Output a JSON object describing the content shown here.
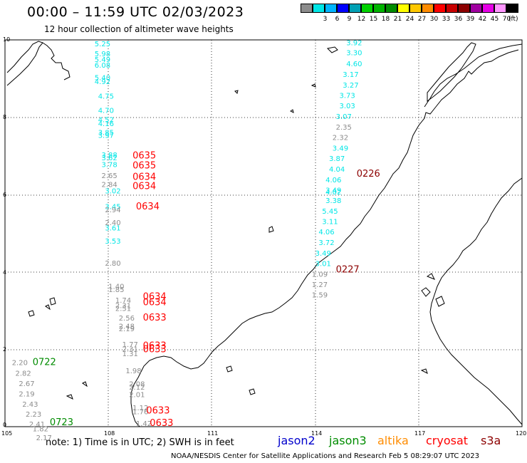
{
  "title": "00:00 – 11:59 UTC 02/03/2023",
  "subtitle": "12 hour collection of altimeter wave heights",
  "legend": {
    "unit": "(ft)",
    "bins": [
      {
        "label": "",
        "color": "#8c8c8c"
      },
      {
        "label": "3",
        "color": "#00e6e6"
      },
      {
        "label": "6",
        "color": "#00b4ff"
      },
      {
        "label": "9",
        "color": "#0000ff"
      },
      {
        "label": "12",
        "color": "#00a0b4"
      },
      {
        "label": "15",
        "color": "#00d200"
      },
      {
        "label": "18",
        "color": "#00b400"
      },
      {
        "label": "21",
        "color": "#008c00"
      },
      {
        "label": "24",
        "color": "#ffff00"
      },
      {
        "label": "27",
        "color": "#ffc800"
      },
      {
        "label": "30",
        "color": "#ff8c00"
      },
      {
        "label": "33",
        "color": "#ff0000"
      },
      {
        "label": "36",
        "color": "#c80000"
      },
      {
        "label": "39",
        "color": "#8c0000"
      },
      {
        "label": "42",
        "color": "#a000a0"
      },
      {
        "label": "45",
        "color": "#e600e6"
      },
      {
        "label": "70",
        "color": "#ff96ff"
      },
      {
        "label": "",
        "color": "#000000"
      }
    ]
  },
  "axes": {
    "x_ticks": [
      "105",
      "108",
      "111",
      "114",
      "117",
      "120"
    ],
    "y_ticks": [
      "0",
      "2",
      "4",
      "6",
      "8",
      "10"
    ]
  },
  "note": "note:  1) Time is in UTC;  2) SWH is in feet",
  "satellites": [
    {
      "name": "jason2",
      "color": "#0000cc"
    },
    {
      "name": "jason3",
      "color": "#008c00"
    },
    {
      "name": "altika",
      "color": "#ff8c00"
    },
    {
      "name": "cryosat",
      "color": "#ff0000"
    },
    {
      "name": "s3a",
      "color": "#8c0000"
    }
  ],
  "credit": "NOAA/NESDIS Center for Satellite Applications and Research    Feb  5 08:29:07 UTC 2023",
  "track_labels": [
    {
      "text": "0635",
      "lon": 108.7,
      "lat": 6.93,
      "color": "#ff0000"
    },
    {
      "text": "0635",
      "lon": 108.7,
      "lat": 6.68,
      "color": "#ff0000"
    },
    {
      "text": "0634",
      "lon": 108.7,
      "lat": 6.38,
      "color": "#ff0000"
    },
    {
      "text": "0634",
      "lon": 108.7,
      "lat": 6.14,
      "color": "#ff0000"
    },
    {
      "text": "0634",
      "lon": 108.8,
      "lat": 5.62,
      "color": "#ff0000"
    },
    {
      "text": "0634",
      "lon": 109.0,
      "lat": 3.29,
      "color": "#ff0000"
    },
    {
      "text": "0634",
      "lon": 109.0,
      "lat": 3.14,
      "color": "#ff0000"
    },
    {
      "text": "0633",
      "lon": 109.0,
      "lat": 2.74,
      "color": "#ff0000"
    },
    {
      "text": "0633",
      "lon": 109.0,
      "lat": 2.02,
      "color": "#ff0000"
    },
    {
      "text": "0633",
      "lon": 109.0,
      "lat": 1.92,
      "color": "#ff0000"
    },
    {
      "text": "0633",
      "lon": 109.1,
      "lat": 0.34,
      "color": "#ff0000"
    },
    {
      "text": "0633",
      "lon": 109.2,
      "lat": 0.02,
      "color": "#ff0000"
    },
    {
      "text": "0226",
      "lon": 115.2,
      "lat": 6.46,
      "color": "#8c0000"
    },
    {
      "text": "0227",
      "lon": 114.6,
      "lat": 3.99,
      "color": "#8c0000"
    },
    {
      "text": "0722",
      "lon": 105.8,
      "lat": 1.59,
      "color": "#008c00"
    },
    {
      "text": "0723",
      "lon": 106.3,
      "lat": 0.04,
      "color": "#008c00"
    }
  ],
  "swh_points": [
    {
      "text": "5.25",
      "lon": 107.6,
      "lat": 9.83,
      "color": "#00e6e6"
    },
    {
      "text": "5.98",
      "lon": 107.6,
      "lat": 9.58,
      "color": "#00e6e6"
    },
    {
      "text": "5.49",
      "lon": 107.6,
      "lat": 9.43,
      "color": "#00e6e6"
    },
    {
      "text": "6.08",
      "lon": 107.6,
      "lat": 9.28,
      "color": "#00e6e6"
    },
    {
      "text": "5.40",
      "lon": 107.6,
      "lat": 8.96,
      "color": "#00e6e6"
    },
    {
      "text": "4.92",
      "lon": 107.6,
      "lat": 8.86,
      "color": "#00e6e6"
    },
    {
      "text": "4.75",
      "lon": 107.7,
      "lat": 8.48,
      "color": "#00e6e6"
    },
    {
      "text": "4.70",
      "lon": 107.7,
      "lat": 8.11,
      "color": "#00e6e6"
    },
    {
      "text": "4.52",
      "lon": 107.7,
      "lat": 7.87,
      "color": "#00e6e6"
    },
    {
      "text": "4.16",
      "lon": 107.7,
      "lat": 7.77,
      "color": "#00e6e6"
    },
    {
      "text": "3.85",
      "lon": 107.7,
      "lat": 7.54,
      "color": "#00e6e6"
    },
    {
      "text": "3.97",
      "lon": 107.7,
      "lat": 7.47,
      "color": "#00e6e6"
    },
    {
      "text": "3.88",
      "lon": 107.8,
      "lat": 6.96,
      "color": "#00e6e6"
    },
    {
      "text": "3.62",
      "lon": 107.8,
      "lat": 6.89,
      "color": "#00e6e6"
    },
    {
      "text": "3.78",
      "lon": 107.8,
      "lat": 6.71,
      "color": "#00e6e6"
    },
    {
      "text": "2.65",
      "lon": 107.8,
      "lat": 6.43,
      "color": "#8c8c8c"
    },
    {
      "text": "2.84",
      "lon": 107.8,
      "lat": 6.2,
      "color": "#8c8c8c"
    },
    {
      "text": "3.02",
      "lon": 107.9,
      "lat": 6.03,
      "color": "#00e6e6"
    },
    {
      "text": "3.45",
      "lon": 107.9,
      "lat": 5.63,
      "color": "#00e6e6"
    },
    {
      "text": "2.94",
      "lon": 107.9,
      "lat": 5.54,
      "color": "#8c8c8c"
    },
    {
      "text": "2.40",
      "lon": 107.9,
      "lat": 5.21,
      "color": "#8c8c8c"
    },
    {
      "text": "3.61",
      "lon": 107.9,
      "lat": 5.07,
      "color": "#00e6e6"
    },
    {
      "text": "3.53",
      "lon": 107.9,
      "lat": 4.73,
      "color": "#00e6e6"
    },
    {
      "text": "2.80",
      "lon": 107.9,
      "lat": 4.16,
      "color": "#8c8c8c"
    },
    {
      "text": "1.40",
      "lon": 108.0,
      "lat": 3.56,
      "color": "#8c8c8c"
    },
    {
      "text": "1.85",
      "lon": 108.0,
      "lat": 3.48,
      "color": "#8c8c8c"
    },
    {
      "text": "1.74",
      "lon": 108.2,
      "lat": 3.2,
      "color": "#8c8c8c"
    },
    {
      "text": "2.31",
      "lon": 108.2,
      "lat": 3.07,
      "color": "#8c8c8c"
    },
    {
      "text": "2.51",
      "lon": 108.2,
      "lat": 2.99,
      "color": "#8c8c8c"
    },
    {
      "text": "2.56",
      "lon": 108.3,
      "lat": 2.74,
      "color": "#8c8c8c"
    },
    {
      "text": "2.48",
      "lon": 108.3,
      "lat": 2.53,
      "color": "#8c8c8c"
    },
    {
      "text": "2.19",
      "lon": 108.3,
      "lat": 2.47,
      "color": "#8c8c8c"
    },
    {
      "text": "1.77",
      "lon": 108.4,
      "lat": 2.06,
      "color": "#8c8c8c"
    },
    {
      "text": "2.31",
      "lon": 108.4,
      "lat": 1.94,
      "color": "#8c8c8c"
    },
    {
      "text": "1.31",
      "lon": 108.4,
      "lat": 1.82,
      "color": "#8c8c8c"
    },
    {
      "text": "1.98",
      "lon": 108.5,
      "lat": 1.38,
      "color": "#8c8c8c"
    },
    {
      "text": "2.08",
      "lon": 108.6,
      "lat": 1.04,
      "color": "#8c8c8c"
    },
    {
      "text": "2.12",
      "lon": 108.6,
      "lat": 0.96,
      "color": "#8c8c8c"
    },
    {
      "text": "2.01",
      "lon": 108.6,
      "lat": 0.76,
      "color": "#8c8c8c"
    },
    {
      "text": "1.12",
      "lon": 108.7,
      "lat": 0.42,
      "color": "#8c8c8c"
    },
    {
      "text": "1.76",
      "lon": 108.7,
      "lat": 0.32,
      "color": "#8c8c8c"
    },
    {
      "text": "1.42",
      "lon": 108.8,
      "lat": 0.02,
      "color": "#8c8c8c"
    },
    {
      "text": "3.92",
      "lon": 114.9,
      "lat": 9.86,
      "color": "#00e6e6"
    },
    {
      "text": "3.30",
      "lon": 114.9,
      "lat": 9.6,
      "color": "#00e6e6"
    },
    {
      "text": "4.60",
      "lon": 114.9,
      "lat": 9.32,
      "color": "#00e6e6"
    },
    {
      "text": "3.17",
      "lon": 114.8,
      "lat": 9.04,
      "color": "#00e6e6"
    },
    {
      "text": "3.27",
      "lon": 114.8,
      "lat": 8.77,
      "color": "#00e6e6"
    },
    {
      "text": "3.73",
      "lon": 114.7,
      "lat": 8.5,
      "color": "#00e6e6"
    },
    {
      "text": "3.03",
      "lon": 114.7,
      "lat": 8.23,
      "color": "#00e6e6"
    },
    {
      "text": "3.07",
      "lon": 114.6,
      "lat": 7.96,
      "color": "#00e6e6"
    },
    {
      "text": "2.35",
      "lon": 114.6,
      "lat": 7.68,
      "color": "#8c8c8c"
    },
    {
      "text": "2.32",
      "lon": 114.5,
      "lat": 7.41,
      "color": "#8c8c8c"
    },
    {
      "text": "3.49",
      "lon": 114.5,
      "lat": 7.14,
      "color": "#00e6e6"
    },
    {
      "text": "3.87",
      "lon": 114.4,
      "lat": 6.87,
      "color": "#00e6e6"
    },
    {
      "text": "4.04",
      "lon": 114.4,
      "lat": 6.59,
      "color": "#00e6e6"
    },
    {
      "text": "4.06",
      "lon": 114.3,
      "lat": 6.32,
      "color": "#00e6e6"
    },
    {
      "text": "3.49",
      "lon": 114.3,
      "lat": 6.05,
      "color": "#00e6e6"
    },
    {
      "text": "4.02",
      "lon": 114.3,
      "lat": 6.0,
      "color": "#00e6e6"
    },
    {
      "text": "3.38",
      "lon": 114.3,
      "lat": 5.78,
      "color": "#00e6e6"
    },
    {
      "text": "5.45",
      "lon": 114.2,
      "lat": 5.51,
      "color": "#00e6e6"
    },
    {
      "text": "3.11",
      "lon": 114.2,
      "lat": 5.24,
      "color": "#00e6e6"
    },
    {
      "text": "4.06",
      "lon": 114.1,
      "lat": 4.97,
      "color": "#00e6e6"
    },
    {
      "text": "3.72",
      "lon": 114.1,
      "lat": 4.7,
      "color": "#00e6e6"
    },
    {
      "text": "3.49",
      "lon": 114.0,
      "lat": 4.42,
      "color": "#00e6e6"
    },
    {
      "text": "3.01",
      "lon": 114.0,
      "lat": 4.15,
      "color": "#00e6e6"
    },
    {
      "text": "1.09",
      "lon": 113.9,
      "lat": 3.88,
      "color": "#8c8c8c"
    },
    {
      "text": "1.27",
      "lon": 113.9,
      "lat": 3.61,
      "color": "#8c8c8c"
    },
    {
      "text": "1.59",
      "lon": 113.9,
      "lat": 3.34,
      "color": "#8c8c8c"
    },
    {
      "text": "2.20",
      "lon": 105.2,
      "lat": 1.59,
      "color": "#8c8c8c"
    },
    {
      "text": "2.82",
      "lon": 105.3,
      "lat": 1.32,
      "color": "#8c8c8c"
    },
    {
      "text": "2.67",
      "lon": 105.4,
      "lat": 1.05,
      "color": "#8c8c8c"
    },
    {
      "text": "2.19",
      "lon": 105.4,
      "lat": 0.78,
      "color": "#8c8c8c"
    },
    {
      "text": "2.43",
      "lon": 105.5,
      "lat": 0.52,
      "color": "#8c8c8c"
    },
    {
      "text": "2.23",
      "lon": 105.6,
      "lat": 0.26,
      "color": "#8c8c8c"
    },
    {
      "text": "2.41",
      "lon": 105.7,
      "lat": 0.0,
      "color": "#8c8c8c"
    },
    {
      "text": "1.82",
      "lon": 105.8,
      "lat": -0.12,
      "color": "#8c8c8c"
    },
    {
      "text": "2.17",
      "lon": 105.9,
      "lat": -0.35,
      "color": "#8c8c8c"
    }
  ]
}
